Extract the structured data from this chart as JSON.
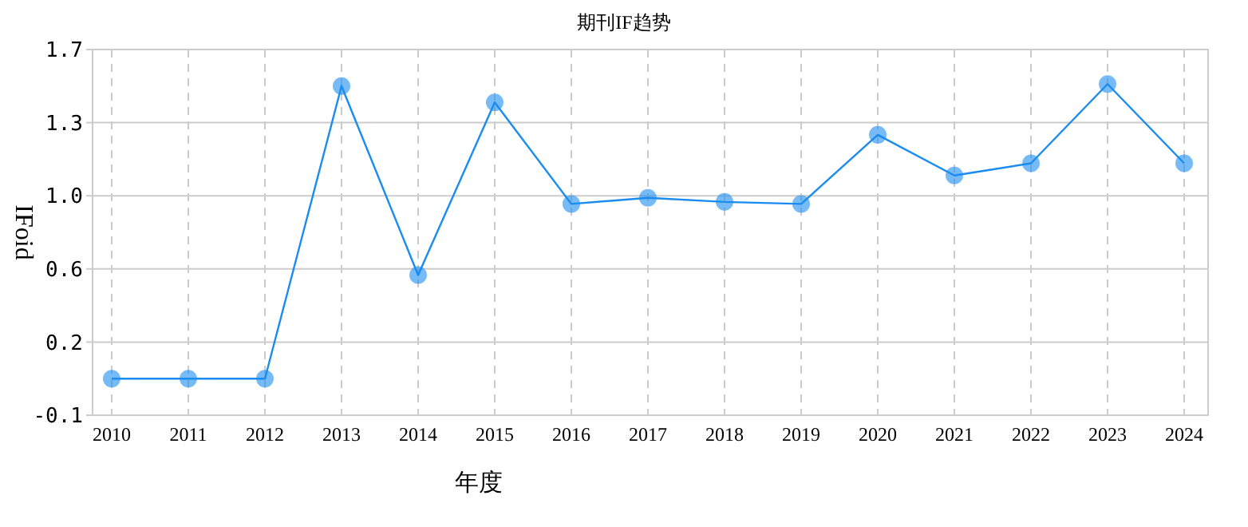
{
  "chart_data": {
    "type": "line",
    "title": "期刊IF趋势",
    "xlabel": "年度",
    "ylabel": "IFoid",
    "categories": [
      "2010",
      "2011",
      "2012",
      "2013",
      "2014",
      "2015",
      "2016",
      "2017",
      "2018",
      "2019",
      "2020",
      "2021",
      "2022",
      "2023",
      "2024"
    ],
    "series": [
      {
        "color": "#1a8cf0",
        "values": [
          0.06,
          0.06,
          0.06,
          1.5,
          0.57,
          1.42,
          0.92,
          0.95,
          0.93,
          0.92,
          1.26,
          1.06,
          1.12,
          1.51,
          1.12
        ]
      }
    ],
    "ylim": [
      -0.12,
      1.68
    ],
    "yticks": [
      {
        "value": -0.12,
        "label": "-0.1"
      },
      {
        "value": 0.24,
        "label": "0.2"
      },
      {
        "value": 0.6,
        "label": "0.6"
      },
      {
        "value": 0.96,
        "label": "1.0"
      },
      {
        "value": 1.32,
        "label": "1.3"
      },
      {
        "value": 1.68,
        "label": "1.7"
      }
    ],
    "grid": true,
    "marker": "circle",
    "line_style": "solid"
  }
}
